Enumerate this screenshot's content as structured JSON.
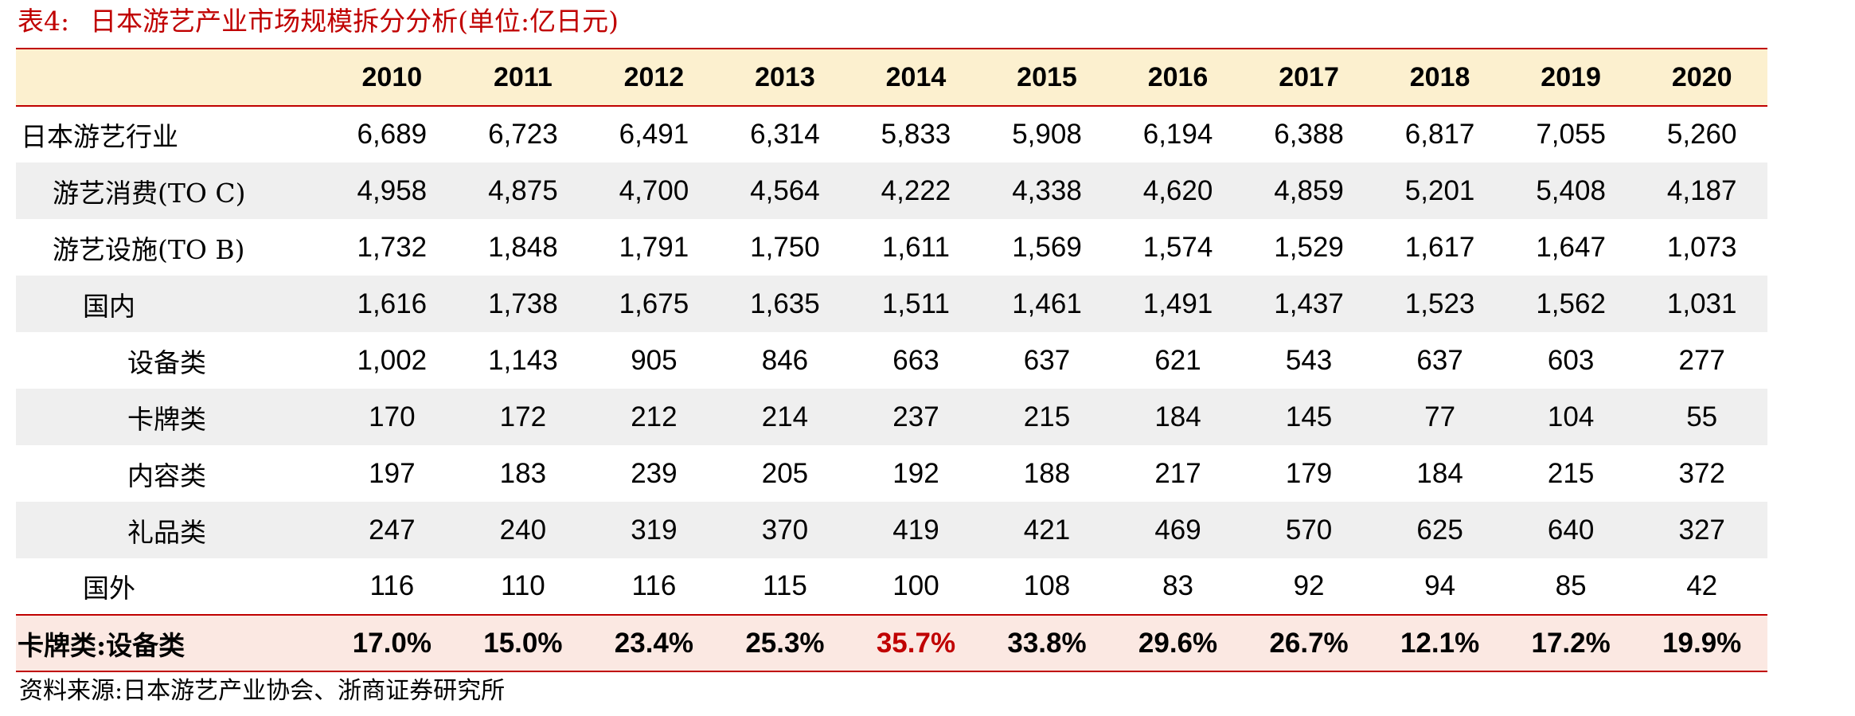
{
  "title": {
    "prefix": "表4:",
    "text": "日本游艺产业市场规模拆分分析(单位:亿日元)"
  },
  "table": {
    "columns": [
      "2010",
      "2011",
      "2012",
      "2013",
      "2014",
      "2015",
      "2016",
      "2017",
      "2018",
      "2019",
      "2020"
    ],
    "rows": [
      {
        "label": "日本游艺行业",
        "level": 0,
        "shaded": false,
        "values": [
          "6,689",
          "6,723",
          "6,491",
          "6,314",
          "5,833",
          "5,908",
          "6,194",
          "6,388",
          "6,817",
          "7,055",
          "5,260"
        ]
      },
      {
        "label": "游艺消费(TO C)",
        "level": 1,
        "shaded": true,
        "values": [
          "4,958",
          "4,875",
          "4,700",
          "4,564",
          "4,222",
          "4,338",
          "4,620",
          "4,859",
          "5,201",
          "5,408",
          "4,187"
        ]
      },
      {
        "label": "游艺设施(TO B)",
        "level": 1,
        "shaded": false,
        "values": [
          "1,732",
          "1,848",
          "1,791",
          "1,750",
          "1,611",
          "1,569",
          "1,574",
          "1,529",
          "1,617",
          "1,647",
          "1,073"
        ]
      },
      {
        "label": "国内",
        "level": 2,
        "shaded": true,
        "values": [
          "1,616",
          "1,738",
          "1,675",
          "1,635",
          "1,511",
          "1,461",
          "1,491",
          "1,437",
          "1,523",
          "1,562",
          "1,031"
        ]
      },
      {
        "label": "设备类",
        "level": 3,
        "shaded": false,
        "values": [
          "1,002",
          "1,143",
          "905",
          "846",
          "663",
          "637",
          "621",
          "543",
          "637",
          "603",
          "277"
        ]
      },
      {
        "label": "卡牌类",
        "level": 3,
        "shaded": true,
        "values": [
          "170",
          "172",
          "212",
          "214",
          "237",
          "215",
          "184",
          "145",
          "77",
          "104",
          "55"
        ]
      },
      {
        "label": "内容类",
        "level": 3,
        "shaded": false,
        "values": [
          "197",
          "183",
          "239",
          "205",
          "192",
          "188",
          "217",
          "179",
          "184",
          "215",
          "372"
        ]
      },
      {
        "label": "礼品类",
        "level": 3,
        "shaded": true,
        "values": [
          "247",
          "240",
          "319",
          "370",
          "419",
          "421",
          "469",
          "570",
          "625",
          "640",
          "327"
        ]
      },
      {
        "label": "国外",
        "level": 2,
        "shaded": false,
        "values": [
          "116",
          "110",
          "116",
          "115",
          "100",
          "108",
          "83",
          "92",
          "94",
          "85",
          "42"
        ]
      }
    ],
    "ratio_row": {
      "label": "卡牌类:设备类",
      "values": [
        "17.0%",
        "15.0%",
        "23.4%",
        "25.3%",
        "35.7%",
        "33.8%",
        "29.6%",
        "26.7%",
        "12.1%",
        "17.2%",
        "19.9%"
      ],
      "highlight_index": 4
    }
  },
  "source": "资料来源:日本游艺产业协会、浙商证券研究所",
  "colors": {
    "accent": "#c00000",
    "header_bg": "#fcf0cf",
    "shaded_row": "#efefef",
    "ratio_bg": "#fbe8e2"
  }
}
